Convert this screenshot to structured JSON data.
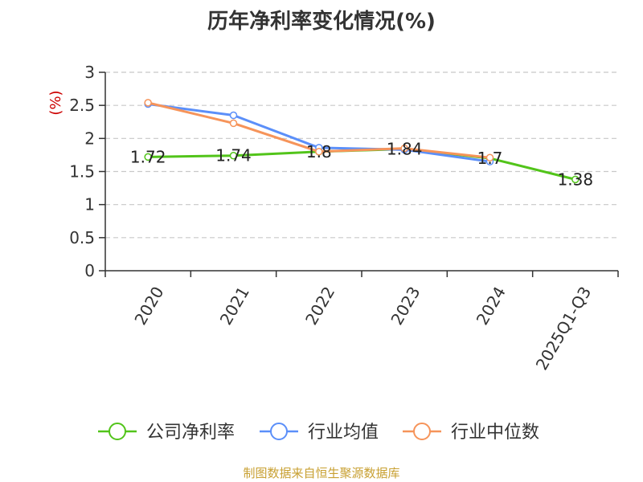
{
  "chart_data": {
    "type": "line",
    "title": "历年净利率变化情况(%)",
    "ylabel": "(%)",
    "categories": [
      "2020",
      "2021",
      "2022",
      "2023",
      "2024",
      "2025Q1-Q3"
    ],
    "ylim": [
      0,
      3
    ],
    "yticks": [
      "0",
      "0.5",
      "1",
      "1.5",
      "2",
      "2.5",
      "3"
    ],
    "grid": true,
    "legend_position": "bottom",
    "series": [
      {
        "name": "公司净利率",
        "color": "#52c41a",
        "values": [
          1.72,
          1.74,
          1.8,
          1.84,
          1.7,
          1.38
        ],
        "labels": [
          "1.72",
          "1.74",
          "1.8",
          "1.84",
          "1.7",
          "1.38"
        ]
      },
      {
        "name": "行业均值",
        "color": "#5b8ff9",
        "values": [
          2.52,
          2.35,
          1.86,
          1.83,
          1.65,
          null
        ]
      },
      {
        "name": "行业中位数",
        "color": "#f6945a",
        "values": [
          2.54,
          2.23,
          1.8,
          1.85,
          1.71,
          null
        ]
      }
    ],
    "source": "制图数据来自恒生聚源数据库"
  }
}
